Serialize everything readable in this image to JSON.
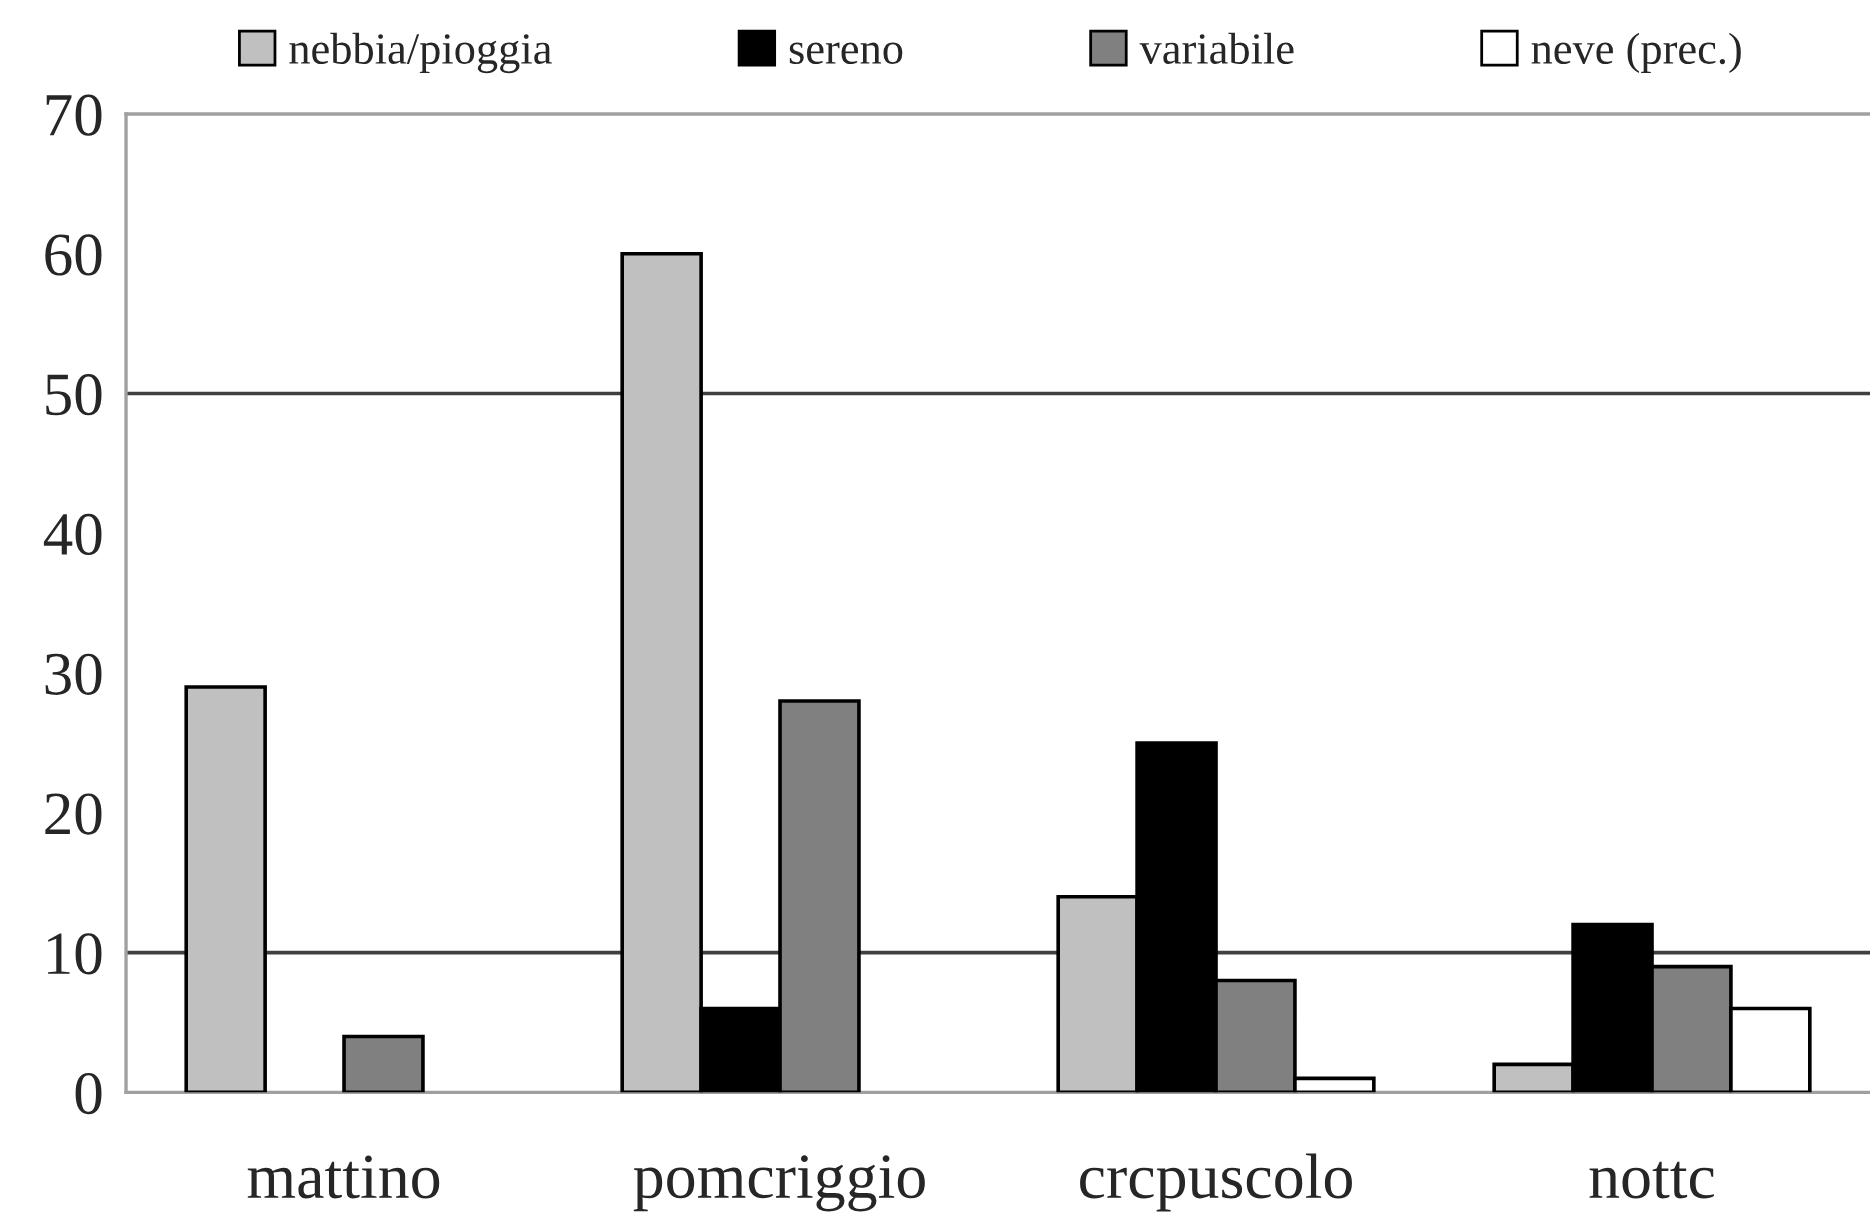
{
  "chart_data": {
    "type": "bar",
    "categories": [
      "mattino",
      "pomcriggio",
      "crcpuscolo",
      "nottc"
    ],
    "series": [
      {
        "name": "nebbia/pioggia",
        "color": "#c0c0c0",
        "values": [
          29,
          60,
          14,
          2
        ]
      },
      {
        "name": "sereno",
        "color": "#000000",
        "values": [
          null,
          6,
          25,
          12
        ]
      },
      {
        "name": "variabile",
        "color": "#808080",
        "values": [
          4,
          28,
          8,
          9
        ]
      },
      {
        "name": "neve (prec.)",
        "color": "#ffffff",
        "values": [
          null,
          null,
          1,
          6
        ]
      }
    ],
    "ylim": [
      0,
      70
    ],
    "yticks": [
      0,
      10,
      20,
      30,
      40,
      50,
      60,
      70
    ],
    "ref_lines": [
      {
        "axis": "y",
        "value": 10,
        "color": "#404040"
      },
      {
        "axis": "y",
        "value": 50,
        "color": "#404040"
      }
    ],
    "grid": false,
    "legend": "top"
  }
}
